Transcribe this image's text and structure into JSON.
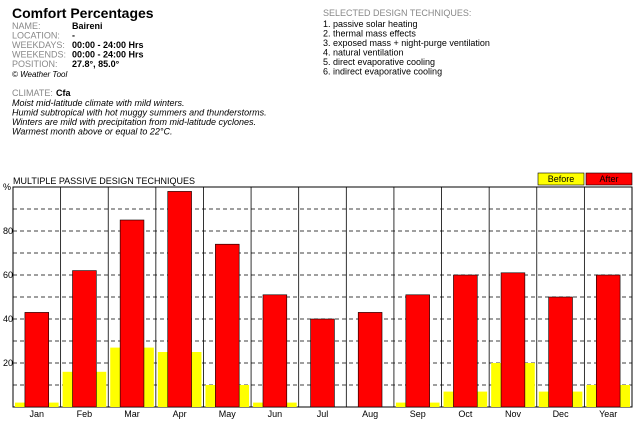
{
  "header": {
    "title": "Comfort Percentages",
    "fields": [
      {
        "label": "NAME:",
        "value": "Baireni"
      },
      {
        "label": "LOCATION:",
        "value": "-"
      },
      {
        "label": "WEEKDAYS:",
        "value": "00:00 - 24:00 Hrs"
      },
      {
        "label": "WEEKENDS:",
        "value": "00:00 - 24:00 Hrs"
      },
      {
        "label": "POSITION:",
        "value": "27.8°, 85.0°"
      }
    ],
    "credit": "© Weather Tool"
  },
  "techniques": {
    "heading": "SELECTED DESIGN TECHNIQUES:",
    "items": [
      "1. passive solar heating",
      "2. thermal mass effects",
      "3. exposed mass + night-purge ventilation",
      "4. natural ventilation",
      "5. direct evaporative cooling",
      "6. indirect evaporative cooling"
    ]
  },
  "climate": {
    "label": "CLIMATE:",
    "code": "Cfa",
    "lines": [
      "Moist mid-latitude climate with mild winters.",
      "Humid subtropical with hot muggy summers and thunderstorms.",
      "Winters are mild with precipitation from mid-latitude cyclones.",
      "Warmest month above or equal to 22°C."
    ]
  },
  "chart_data": {
    "type": "bar",
    "title": "MULTIPLE PASSIVE DESIGN TECHNIQUES",
    "y_label": "%",
    "categories": [
      "Jan",
      "Feb",
      "Mar",
      "Apr",
      "May",
      "Jun",
      "Jul",
      "Aug",
      "Sep",
      "Oct",
      "Nov",
      "Dec",
      "Year"
    ],
    "series": [
      {
        "name": "Before",
        "color": "#ffff00",
        "values": [
          2,
          16,
          27,
          25,
          10,
          2,
          0,
          0,
          2,
          7,
          20,
          7,
          10
        ]
      },
      {
        "name": "After",
        "color": "#ff0000",
        "values": [
          43,
          62,
          85,
          98,
          74,
          51,
          40,
          43,
          51,
          60,
          61,
          50,
          60
        ]
      }
    ],
    "ylim": [
      0,
      100
    ],
    "yticks": [
      20,
      40,
      60,
      80
    ],
    "gridlines": [
      10,
      20,
      30,
      40,
      50,
      60,
      70,
      80,
      90
    ],
    "grid": true
  }
}
